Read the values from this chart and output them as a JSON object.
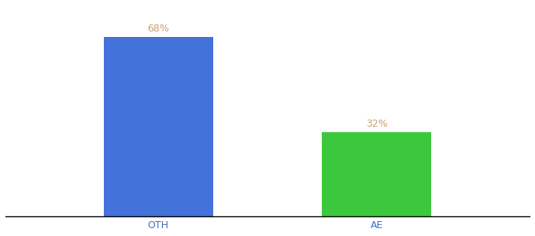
{
  "categories": [
    "OTH",
    "AE"
  ],
  "values": [
    68,
    32
  ],
  "bar_colors": [
    "#4472DB",
    "#3CC83C"
  ],
  "label_color": "#C8A06E",
  "label_fontsize": 9,
  "tick_fontsize": 9,
  "tick_color": "#4472c4",
  "ylim": [
    0,
    80
  ],
  "bar_width": 0.5,
  "background_color": "#ffffff"
}
